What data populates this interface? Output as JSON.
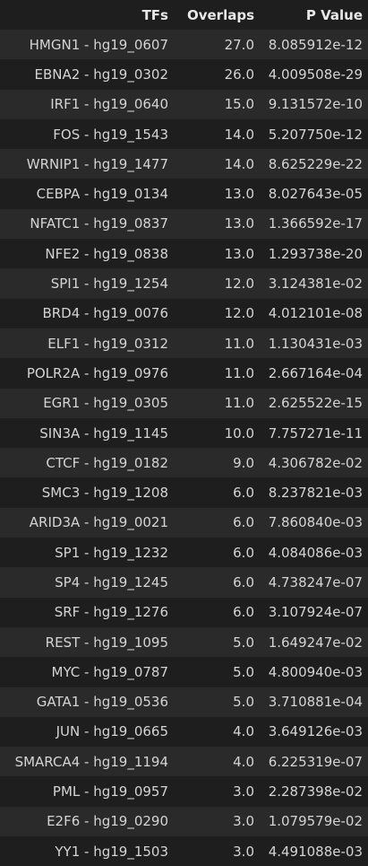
{
  "table": {
    "headers": [
      "TFs",
      "Overlaps",
      "P Value"
    ],
    "rows": [
      [
        "HMGN1 - hg19_0607",
        "27.0",
        "8.085912e-12"
      ],
      [
        "EBNA2 - hg19_0302",
        "26.0",
        "4.009508e-29"
      ],
      [
        "IRF1 - hg19_0640",
        "15.0",
        "9.131572e-10"
      ],
      [
        "FOS - hg19_1543",
        "14.0",
        "5.207750e-12"
      ],
      [
        "WRNIP1 - hg19_1477",
        "14.0",
        "8.625229e-22"
      ],
      [
        "CEBPA - hg19_0134",
        "13.0",
        "8.027643e-05"
      ],
      [
        "NFATC1 - hg19_0837",
        "13.0",
        "1.366592e-17"
      ],
      [
        "NFE2 - hg19_0838",
        "13.0",
        "1.293738e-20"
      ],
      [
        "SPI1 - hg19_1254",
        "12.0",
        "3.124381e-02"
      ],
      [
        "BRD4 - hg19_0076",
        "12.0",
        "4.012101e-08"
      ],
      [
        "ELF1 - hg19_0312",
        "11.0",
        "1.130431e-03"
      ],
      [
        "POLR2A - hg19_0976",
        "11.0",
        "2.667164e-04"
      ],
      [
        "EGR1 - hg19_0305",
        "11.0",
        "2.625522e-15"
      ],
      [
        "SIN3A - hg19_1145",
        "10.0",
        "7.757271e-11"
      ],
      [
        "CTCF - hg19_0182",
        "9.0",
        "4.306782e-02"
      ],
      [
        "SMC3 - hg19_1208",
        "6.0",
        "8.237821e-03"
      ],
      [
        "ARID3A - hg19_0021",
        "6.0",
        "7.860840e-03"
      ],
      [
        "SP1 - hg19_1232",
        "6.0",
        "4.084086e-03"
      ],
      [
        "SP4 - hg19_1245",
        "6.0",
        "4.738247e-07"
      ],
      [
        "SRF - hg19_1276",
        "6.0",
        "3.107924e-07"
      ],
      [
        "REST - hg19_1095",
        "5.0",
        "1.649247e-02"
      ],
      [
        "MYC - hg19_0787",
        "5.0",
        "4.800940e-03"
      ],
      [
        "GATA1 - hg19_0536",
        "5.0",
        "3.710881e-04"
      ],
      [
        "JUN - hg19_0665",
        "4.0",
        "3.649126e-03"
      ],
      [
        "SMARCA4 - hg19_1194",
        "4.0",
        "6.225319e-07"
      ],
      [
        "PML - hg19_0957",
        "3.0",
        "2.287398e-02"
      ],
      [
        "E2F6 - hg19_0290",
        "3.0",
        "1.079579e-02"
      ],
      [
        "YY1 - hg19_1503",
        "3.0",
        "4.491088e-03"
      ]
    ]
  },
  "colors": {
    "background": "#1e1e1e",
    "row_stripe": "#2a2a2a",
    "text": "#d4d4d4",
    "header_text": "#e8e8e8"
  }
}
